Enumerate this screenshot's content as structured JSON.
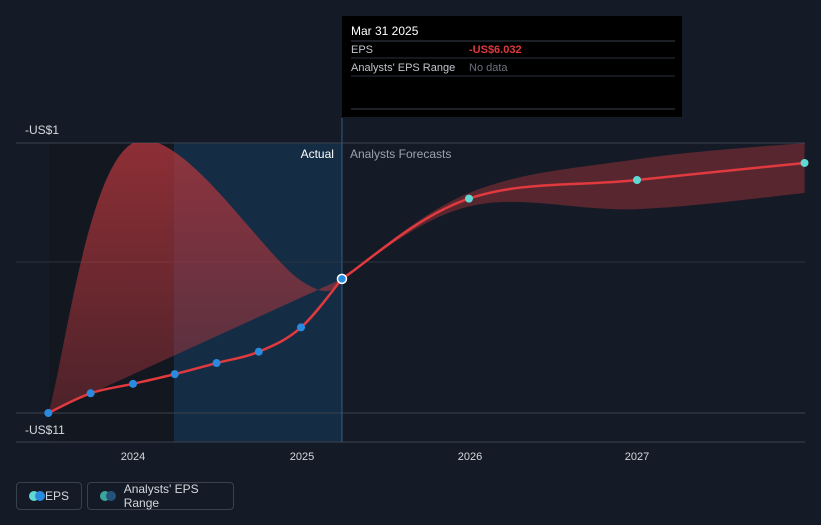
{
  "chart_data": {
    "type": "line",
    "x_ticks": [
      "2024",
      "2025",
      "2026",
      "2027"
    ],
    "y_labels": {
      "top": "-US$1",
      "bottom": "-US$11"
    },
    "ylim": [
      -11,
      -1
    ],
    "regions": {
      "actual_label": "Actual",
      "forecast_label": "Analysts Forecasts"
    },
    "series": [
      {
        "name": "EPS",
        "color": "#e0393e",
        "actual_points": [
          {
            "x": "2023-07-01",
            "y": -11.0
          },
          {
            "x": "2023-10-01",
            "y": -10.27
          },
          {
            "x": "2024-01-01",
            "y": -9.92
          },
          {
            "x": "2024-04-01",
            "y": -9.56
          },
          {
            "x": "2024-07-01",
            "y": -9.15
          },
          {
            "x": "2024-10-01",
            "y": -8.73
          },
          {
            "x": "2025-01-01",
            "y": -7.83
          },
          {
            "x": "2025-03-31",
            "y": -6.032
          }
        ],
        "forecast_points": [
          {
            "x": "2026-01-01",
            "y": -3.06
          },
          {
            "x": "2027-01-01",
            "y": -2.37
          },
          {
            "x": "2027-12-31",
            "y": -1.74
          }
        ]
      }
    ],
    "range_band": {
      "name": "Analysts' EPS Range",
      "color": "#b5363c",
      "historical_upper": [
        {
          "x": "2023-07-01",
          "y": -11.0
        },
        {
          "x": "2024-01-01",
          "y": -1.0
        },
        {
          "x": "2025-01-01",
          "y": -6.1
        },
        {
          "x": "2025-03-31",
          "y": -6.032
        }
      ],
      "historical_lower": [
        {
          "x": "2023-07-01",
          "y": -11.0
        },
        {
          "x": "2025-03-31",
          "y": -6.032
        }
      ],
      "forecast_upper": [
        {
          "x": "2025-03-31",
          "y": -6.032
        },
        {
          "x": "2026-01-01",
          "y": -2.85
        },
        {
          "x": "2027-01-01",
          "y": -1.6
        },
        {
          "x": "2027-12-31",
          "y": -1.0
        }
      ],
      "forecast_lower": [
        {
          "x": "2025-03-31",
          "y": -6.032
        },
        {
          "x": "2026-01-01",
          "y": -3.35
        },
        {
          "x": "2027-01-01",
          "y": -3.45
        },
        {
          "x": "2027-12-31",
          "y": -2.85
        }
      ]
    },
    "grid": true,
    "legend_position": "bottom-left"
  },
  "tooltip": {
    "date": "Mar 31 2025",
    "rows": [
      {
        "label": "EPS",
        "value": "-US$6.032",
        "value_color": "#e0393e"
      },
      {
        "label": "Analysts' EPS Range",
        "value": "No data",
        "value_color": "#6b7280"
      }
    ]
  },
  "legend": {
    "items": [
      {
        "label": "EPS",
        "dot_colors": [
          "#5fd9d1",
          "#2a8ae0"
        ]
      },
      {
        "label": "Analysts' EPS Range",
        "dot_colors": [
          "#3aa59e",
          "#24527a"
        ]
      }
    ]
  }
}
